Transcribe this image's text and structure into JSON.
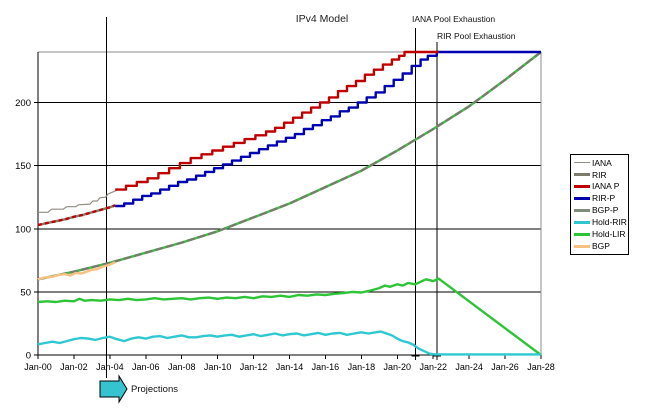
{
  "title": "IPv4 Model",
  "annotations": {
    "iana_exhaustion": {
      "label": "IANA Pool Exhaustion",
      "year": 21.0
    },
    "rir_exhaustion": {
      "label": "RIR Pool Exhaustion",
      "year": 22.2
    },
    "projections": {
      "label": "Projections",
      "year": 3.8
    }
  },
  "colors": {
    "grid": "#000000",
    "border_gray": "#8c8c8c",
    "axis": "#000000",
    "annotation_line": "#000000",
    "arrow_fill": "#35c4cf",
    "arrow_stroke": "#000000"
  },
  "chart_data": {
    "type": "line",
    "title": "IPv4 Model",
    "x_axis": {
      "unit": "years since Jan-2000",
      "range": [
        0,
        28
      ],
      "tick_step_years": 2,
      "tick_labels": [
        "Jan-00",
        "Jan-02",
        "Jan-04",
        "Jan-06",
        "Jan-08",
        "Jan-10",
        "Jan-12",
        "Jan-14",
        "Jan-16",
        "Jan-18",
        "Jan-20",
        "Jan-22",
        "Jan-24",
        "Jan-26",
        "Jan-28"
      ]
    },
    "y_axis": {
      "range": [
        0,
        240
      ],
      "ticks": [
        0,
        50,
        100,
        150,
        200
      ],
      "unit": "/8 blocks"
    },
    "legend_position": "right",
    "grid": "horizontal",
    "draw_order": [
      "BGP-P",
      "BGP",
      "Hold-LIR",
      "Hold-RIR",
      "RIR",
      "IANA",
      "RIR-P",
      "IANA P"
    ],
    "series": [
      {
        "name": "IANA",
        "color": "#908e82",
        "width": 1.2,
        "step": false,
        "points": [
          [
            0,
            113
          ],
          [
            0.55,
            113
          ],
          [
            0.75,
            115.5
          ],
          [
            1.4,
            115.5
          ],
          [
            1.6,
            117.5
          ],
          [
            2.1,
            117.5
          ],
          [
            2.25,
            119
          ],
          [
            2.9,
            119.5
          ],
          [
            3.05,
            122
          ],
          [
            3.3,
            122
          ],
          [
            3.45,
            124.5
          ],
          [
            3.75,
            125
          ],
          [
            3.9,
            127.5
          ],
          [
            4.15,
            129
          ],
          [
            4.4,
            130.5
          ]
        ]
      },
      {
        "name": "RIR",
        "color": "#7d7c6c",
        "width": 2.4,
        "step": false,
        "overlay": {
          "color": "#c00000",
          "dash": "4 3"
        },
        "points": [
          [
            0,
            103
          ],
          [
            0.5,
            104.5
          ],
          [
            1,
            106
          ],
          [
            1.5,
            107.5
          ],
          [
            2,
            109.5
          ],
          [
            2.5,
            111
          ],
          [
            3,
            113
          ],
          [
            3.5,
            115
          ],
          [
            4,
            117
          ],
          [
            4.3,
            118.5
          ]
        ]
      },
      {
        "name": "IANA P",
        "color": "#c00000",
        "width": 2.4,
        "step": true,
        "points": [
          [
            4.3,
            131
          ],
          [
            4.9,
            134
          ],
          [
            5.5,
            137
          ],
          [
            6.1,
            140
          ],
          [
            6.7,
            144
          ],
          [
            7.3,
            148
          ],
          [
            7.9,
            152
          ],
          [
            8.5,
            156
          ],
          [
            9.1,
            159
          ],
          [
            9.7,
            162
          ],
          [
            10.3,
            165
          ],
          [
            10.9,
            168
          ],
          [
            11.5,
            171
          ],
          [
            12.1,
            174
          ],
          [
            12.7,
            177
          ],
          [
            13.2,
            180
          ],
          [
            13.7,
            184
          ],
          [
            14.2,
            188
          ],
          [
            14.7,
            192
          ],
          [
            15.2,
            196
          ],
          [
            15.7,
            200
          ],
          [
            16.2,
            204
          ],
          [
            16.7,
            209
          ],
          [
            17.2,
            213
          ],
          [
            17.7,
            217
          ],
          [
            18.2,
            222
          ],
          [
            18.7,
            226
          ],
          [
            19.2,
            230
          ],
          [
            19.7,
            234
          ],
          [
            20.1,
            237
          ],
          [
            20.4,
            240
          ],
          [
            22.3,
            240
          ]
        ]
      },
      {
        "name": "RIR-P",
        "color": "#0000b3",
        "width": 2.4,
        "step": true,
        "points": [
          [
            4.3,
            118
          ],
          [
            4.8,
            120
          ],
          [
            5.3,
            123
          ],
          [
            5.8,
            126
          ],
          [
            6.3,
            128
          ],
          [
            6.8,
            131
          ],
          [
            7.3,
            134
          ],
          [
            7.8,
            137
          ],
          [
            8.3,
            139
          ],
          [
            8.8,
            142
          ],
          [
            9.3,
            145
          ],
          [
            9.8,
            148
          ],
          [
            10.3,
            151
          ],
          [
            10.8,
            154
          ],
          [
            11.3,
            157
          ],
          [
            11.8,
            160
          ],
          [
            12.3,
            163
          ],
          [
            12.8,
            166
          ],
          [
            13.3,
            169
          ],
          [
            13.8,
            172
          ],
          [
            14.3,
            175
          ],
          [
            14.8,
            179
          ],
          [
            15.3,
            182
          ],
          [
            15.8,
            186
          ],
          [
            16.3,
            189
          ],
          [
            16.8,
            193
          ],
          [
            17.3,
            196
          ],
          [
            17.8,
            200
          ],
          [
            18.3,
            204
          ],
          [
            18.8,
            208
          ],
          [
            19.3,
            213
          ],
          [
            19.8,
            218
          ],
          [
            20.3,
            223
          ],
          [
            20.8,
            229
          ],
          [
            21.3,
            234
          ],
          [
            21.7,
            237
          ],
          [
            22.2,
            240
          ],
          [
            28,
            240
          ]
        ]
      },
      {
        "name": "BGP-P",
        "color": "#3bbf41",
        "width": 2.4,
        "step": false,
        "legend_color": "#7d8d7a",
        "overlay": {
          "color": "#757d6b",
          "dash": "8 3"
        },
        "points": [
          [
            0,
            60
          ],
          [
            2,
            66
          ],
          [
            4,
            73
          ],
          [
            6,
            81
          ],
          [
            8,
            89
          ],
          [
            10,
            98
          ],
          [
            12,
            109
          ],
          [
            14,
            120
          ],
          [
            16,
            133
          ],
          [
            18,
            146
          ],
          [
            20,
            162
          ],
          [
            22,
            179
          ],
          [
            24,
            197
          ],
          [
            26,
            218
          ],
          [
            28,
            240
          ]
        ]
      },
      {
        "name": "Hold-RIR",
        "color": "#2fc8d2",
        "width": 2.4,
        "step": false,
        "points": [
          [
            0,
            8.5
          ],
          [
            0.4,
            9.5
          ],
          [
            0.8,
            10.5
          ],
          [
            1.2,
            9.5
          ],
          [
            1.6,
            11
          ],
          [
            2,
            12.5
          ],
          [
            2.4,
            13.5
          ],
          [
            2.8,
            13
          ],
          [
            3.2,
            12
          ],
          [
            3.6,
            13.5
          ],
          [
            4,
            14.5
          ],
          [
            4.4,
            12.5
          ],
          [
            4.8,
            11
          ],
          [
            5.2,
            13
          ],
          [
            5.6,
            14
          ],
          [
            6,
            13
          ],
          [
            6.4,
            14.5
          ],
          [
            6.8,
            15
          ],
          [
            7.2,
            13.5
          ],
          [
            7.6,
            14.5
          ],
          [
            8,
            15.5
          ],
          [
            8.4,
            14
          ],
          [
            8.8,
            14
          ],
          [
            9.2,
            15
          ],
          [
            9.6,
            15.5
          ],
          [
            10,
            14.5
          ],
          [
            10.4,
            15.5
          ],
          [
            10.8,
            16
          ],
          [
            11.2,
            14.5
          ],
          [
            11.6,
            15.5
          ],
          [
            12,
            16.5
          ],
          [
            12.4,
            15
          ],
          [
            12.8,
            16
          ],
          [
            13.2,
            17
          ],
          [
            13.6,
            15.5
          ],
          [
            14,
            16.5
          ],
          [
            14.4,
            17
          ],
          [
            14.8,
            15.5
          ],
          [
            15.2,
            16.5
          ],
          [
            15.6,
            17.5
          ],
          [
            16,
            16
          ],
          [
            16.4,
            17
          ],
          [
            16.8,
            17.5
          ],
          [
            17.2,
            16
          ],
          [
            17.6,
            17
          ],
          [
            18,
            18
          ],
          [
            18.4,
            17
          ],
          [
            18.8,
            18
          ],
          [
            19.1,
            18.5
          ],
          [
            19.4,
            17
          ],
          [
            19.7,
            15.5
          ],
          [
            20,
            13
          ],
          [
            20.3,
            11
          ],
          [
            20.6,
            10
          ],
          [
            20.9,
            8
          ],
          [
            21.2,
            5
          ],
          [
            21.5,
            3
          ],
          [
            21.8,
            1
          ],
          [
            22.1,
            0.5
          ],
          [
            28,
            0.5
          ]
        ]
      },
      {
        "name": "Hold-LIR",
        "color": "#2dc437",
        "width": 2.4,
        "step": false,
        "points": [
          [
            0,
            42
          ],
          [
            0.5,
            42.5
          ],
          [
            1,
            42
          ],
          [
            1.5,
            43
          ],
          [
            2,
            42.5
          ],
          [
            2.3,
            44.5
          ],
          [
            2.6,
            43
          ],
          [
            3,
            43.5
          ],
          [
            3.5,
            43
          ],
          [
            4,
            44
          ],
          [
            4.5,
            43.5
          ],
          [
            5,
            44.5
          ],
          [
            5.5,
            43.5
          ],
          [
            6,
            44
          ],
          [
            6.5,
            45
          ],
          [
            7,
            44
          ],
          [
            7.5,
            44.5
          ],
          [
            8,
            45
          ],
          [
            8.5,
            44
          ],
          [
            9,
            45
          ],
          [
            9.5,
            45.5
          ],
          [
            10,
            44.5
          ],
          [
            10.5,
            45.5
          ],
          [
            11,
            45
          ],
          [
            11.5,
            46
          ],
          [
            12,
            45
          ],
          [
            12.5,
            46.5
          ],
          [
            13,
            46
          ],
          [
            13.5,
            47
          ],
          [
            14,
            46
          ],
          [
            14.5,
            47.5
          ],
          [
            15,
            47
          ],
          [
            15.5,
            48
          ],
          [
            16,
            47.5
          ],
          [
            16.5,
            48.5
          ],
          [
            17,
            49
          ],
          [
            17.5,
            50
          ],
          [
            18,
            49.5
          ],
          [
            18.5,
            51
          ],
          [
            19,
            53
          ],
          [
            19.3,
            55
          ],
          [
            19.6,
            54
          ],
          [
            20,
            56
          ],
          [
            20.3,
            55
          ],
          [
            20.6,
            57
          ],
          [
            21,
            56
          ],
          [
            21.3,
            58
          ],
          [
            21.6,
            60
          ],
          [
            22,
            58.5
          ],
          [
            22.3,
            60.5
          ],
          [
            28,
            0
          ]
        ]
      },
      {
        "name": "BGP",
        "color": "#f6c181",
        "width": 2.4,
        "step": false,
        "points": [
          [
            0,
            60
          ],
          [
            0.4,
            61.5
          ],
          [
            0.8,
            62
          ],
          [
            1.2,
            63.5
          ],
          [
            1.5,
            64
          ],
          [
            1.8,
            63
          ],
          [
            2.1,
            65
          ],
          [
            2.4,
            64.5
          ],
          [
            2.7,
            66
          ],
          [
            3,
            67.5
          ],
          [
            3.3,
            68
          ],
          [
            3.6,
            70
          ],
          [
            4,
            71.5
          ],
          [
            4.3,
            73.5
          ]
        ]
      }
    ]
  }
}
